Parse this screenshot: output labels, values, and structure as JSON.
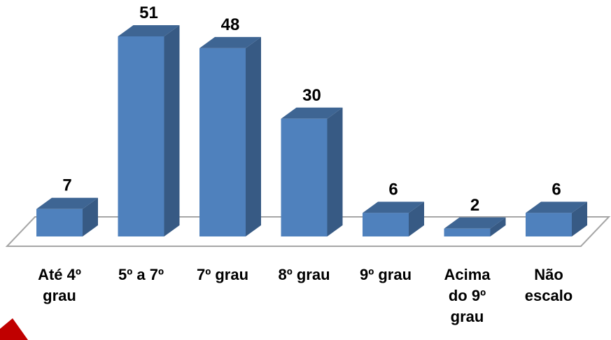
{
  "chart_data": {
    "type": "bar",
    "categories": [
      "Até 4º grau",
      "5º a 7º",
      "7º grau",
      "8º grau",
      "9º grau",
      "Acima do 9º grau",
      "Não escalo"
    ],
    "values": [
      7,
      51,
      48,
      30,
      6,
      2,
      6
    ],
    "color": "#4f81bd"
  }
}
